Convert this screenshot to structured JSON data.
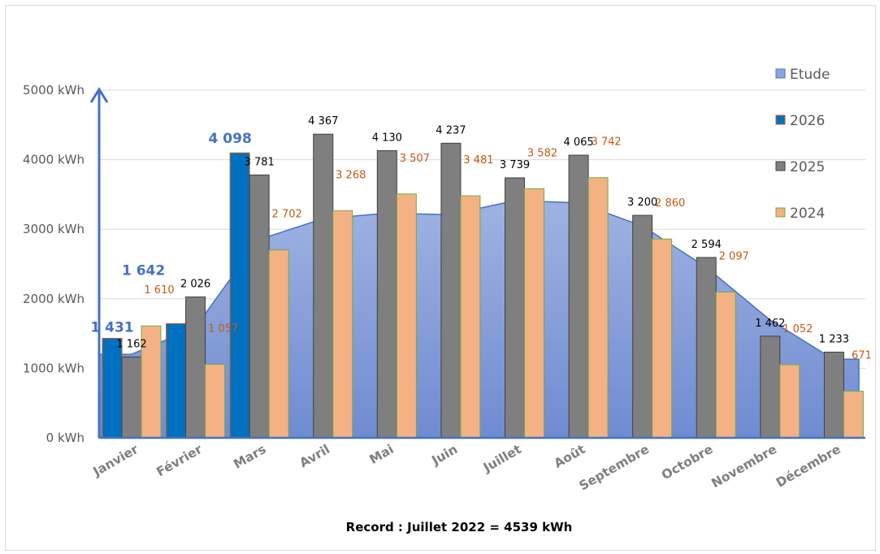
{
  "chart_data": {
    "type": "bar",
    "categories": [
      "Janvier",
      "Février",
      "Mars",
      "Avril",
      "Mai",
      "Juin",
      "Juillet",
      "Août",
      "Septembre",
      "Octobre",
      "Novembre",
      "Décembre"
    ],
    "y_tick_labels": [
      "0 kWh",
      "1000 kWh",
      "2000 kWh",
      "3000 kWh",
      "4000 kWh",
      "5000 kWh"
    ],
    "ylim": [
      0,
      5000
    ],
    "grid": true,
    "legend_position": "right",
    "series": [
      {
        "name": "Etude",
        "kind": "area",
        "color": "#8ea4dc",
        "values": [
          1200,
          1580,
          2850,
          3150,
          3230,
          3210,
          3410,
          3380,
          3050,
          2460,
          1700,
          1130
        ]
      },
      {
        "name": "2026",
        "kind": "bar",
        "color": "#0070c0",
        "label_color": "#4472c4",
        "values": [
          1431,
          1642,
          4098,
          null,
          null,
          null,
          null,
          null,
          null,
          null,
          null,
          null
        ],
        "labels": [
          "1 431",
          "1 642",
          "4 098",
          "",
          "",
          "",
          "",
          "",
          "",
          "",
          "",
          ""
        ]
      },
      {
        "name": "2025",
        "kind": "bar",
        "color": "#7f7f7f",
        "label_color": "#000000",
        "values": [
          1162,
          2026,
          3781,
          4367,
          4130,
          4237,
          3739,
          4065,
          3200,
          2594,
          1462,
          1233
        ],
        "labels": [
          "1 162",
          "2 026",
          "3 781",
          "4 367",
          "4 130",
          "4 237",
          "3 739",
          "4 065",
          "3 200",
          "2 594",
          "1 462",
          "1 233"
        ]
      },
      {
        "name": "2024",
        "kind": "bar",
        "color": "#f4b183",
        "label_color": "#c55a11",
        "values": [
          1610,
          1057,
          2702,
          3268,
          3507,
          3481,
          3582,
          3742,
          2860,
          2097,
          1052,
          671
        ],
        "labels": [
          "1 610",
          "1 057",
          "2 702",
          "3 268",
          "3 507",
          "3 481",
          "3 582",
          "3 742",
          "2 860",
          "2 097",
          "1 052",
          "671"
        ]
      }
    ],
    "annotation": "Record : Juillet 2022 = 4539 kWh"
  }
}
